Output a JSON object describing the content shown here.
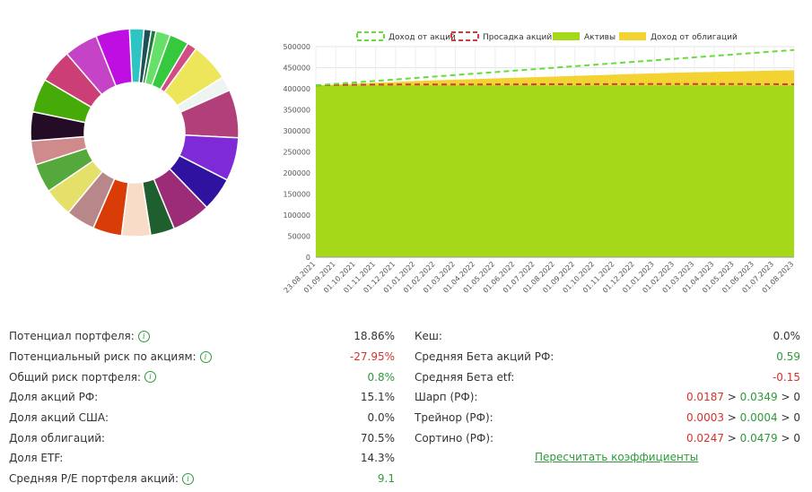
{
  "donut": {
    "colors": [
      "#2ec4c4",
      "#1f4f57",
      "#1e7a3a",
      "#67e06a",
      "#36c93f",
      "#d24d86",
      "#ede65a",
      "#eef4f2",
      "#b03f7a",
      "#7e2ad6",
      "#2f12a0",
      "#9c2b78",
      "#1f5e2e",
      "#f9dcc7",
      "#d93c06",
      "#b8878a",
      "#e5e06a",
      "#55a83c",
      "#cf8b8b",
      "#240b26",
      "#46aa08",
      "#cc3f76",
      "#c443c6",
      "#bf0ee2"
    ],
    "weights": [
      3,
      1.5,
      1,
      3,
      4,
      2,
      8,
      3,
      10,
      9,
      7,
      8,
      5,
      6,
      6,
      6,
      6,
      6,
      5,
      6,
      7,
      7,
      7,
      7
    ]
  },
  "chart_data": {
    "type": "area",
    "legend": [
      {
        "label": "Доход от акций",
        "color": "#66dd3a",
        "style": "dashed"
      },
      {
        "label": "Просадка акций",
        "color": "#d23b3b",
        "style": "dashed"
      },
      {
        "label": "Активы",
        "color": "#a6d81a",
        "style": "fill"
      },
      {
        "label": "Доход от облигаций",
        "color": "#f2d331",
        "style": "fill"
      }
    ],
    "x": [
      "23.08.2021",
      "01.09.2021",
      "01.10.2021",
      "01.11.2021",
      "01.12.2021",
      "01.01.2022",
      "01.02.2022",
      "01.03.2022",
      "01.04.2022",
      "01.05.2022",
      "01.06.2022",
      "01.07.2022",
      "01.08.2022",
      "01.09.2022",
      "01.10.2022",
      "01.11.2022",
      "01.12.2022",
      "01.01.2023",
      "01.02.2023",
      "01.03.2023",
      "01.04.2023",
      "01.05.2023",
      "01.06.2023",
      "01.07.2023",
      "01.08.2023"
    ],
    "ylim": [
      0,
      500000
    ],
    "yticks": [
      "0",
      "50000",
      "100000",
      "150000",
      "200000",
      "250000",
      "300000",
      "350000",
      "400000",
      "450000",
      "500000"
    ],
    "series": [
      {
        "name": "Активы",
        "values": [
          408000,
          408000,
          408000,
          408000,
          408000,
          408000,
          408000,
          408000,
          408000,
          408000,
          408000,
          408000,
          408000,
          408000,
          408000,
          408000,
          408000,
          408000,
          408000,
          408000,
          408000,
          408000,
          408000,
          408000,
          408000
        ]
      },
      {
        "name": "Доход от облигаций",
        "values": [
          408000,
          410000,
          412000,
          414000,
          416000,
          418000,
          420000,
          421500,
          423000,
          424500,
          426000,
          427500,
          429000,
          430500,
          432000,
          433500,
          435000,
          436500,
          438000,
          439000,
          440000,
          441000,
          442000,
          443000,
          444000
        ]
      },
      {
        "name": "Доход от акций",
        "values": [
          408000,
          411500,
          415000,
          418500,
          422000,
          425500,
          429000,
          432500,
          436000,
          439500,
          443000,
          446500,
          450000,
          453500,
          457000,
          460500,
          464000,
          467500,
          471000,
          474500,
          478000,
          481500,
          485000,
          488500,
          492000
        ]
      },
      {
        "name": "Просадка акций",
        "values": [
          408000,
          409000,
          409500,
          409800,
          410000,
          410000,
          410000,
          410000,
          410200,
          410300,
          410400,
          410500,
          410600,
          410700,
          410800,
          411000,
          411000,
          411200,
          411300,
          411300,
          411200,
          411100,
          411000,
          410800,
          410500
        ]
      }
    ]
  },
  "stats_left": [
    {
      "label": "Потенциал портфеля:",
      "info": "i",
      "value": "18.86%",
      "tone": "dark"
    },
    {
      "label": "Потенциальный риск по акциям:",
      "info": "i",
      "value": "-27.95%",
      "tone": "red"
    },
    {
      "label": "Общий риск портфеля:",
      "info": "i",
      "value": "0.8%",
      "tone": "green"
    },
    {
      "label": "Доля акций РФ:",
      "info": "",
      "value": "15.1%",
      "tone": "dark"
    },
    {
      "label": "Доля акций США:",
      "info": "",
      "value": "0.0%",
      "tone": "dark"
    },
    {
      "label": "Доля облигаций:",
      "info": "",
      "value": "70.5%",
      "tone": "dark"
    },
    {
      "label": "Доля ETF:",
      "info": "",
      "value": "14.3%",
      "tone": "dark"
    },
    {
      "label": "Средняя P/E портфеля акций:",
      "info": "i",
      "value": "9.1",
      "tone": "green"
    }
  ],
  "stats_right": [
    {
      "label": "Кеш:",
      "value": "0.0%",
      "tone": "dark"
    },
    {
      "label": "Средняя Бета акций РФ:",
      "value": "0.59",
      "tone": "green"
    },
    {
      "label": "Средняя Бета etf:",
      "value": "-0.15",
      "tone": "red"
    },
    {
      "label": "Шарп (РФ):",
      "v1": "0.0187",
      "op1": " > ",
      "v2": "0.0349",
      "op2": " > 0"
    },
    {
      "label": "Трейнор (РФ):",
      "v1": "0.0003",
      "op1": " > ",
      "v2": "0.0004",
      "op2": " > 0"
    },
    {
      "label": "Сортино (РФ):",
      "v1": "0.0247",
      "op1": " > ",
      "v2": "0.0479",
      "op2": " > 0"
    }
  ],
  "recalc_link": "Пересчитать коэффициенты"
}
